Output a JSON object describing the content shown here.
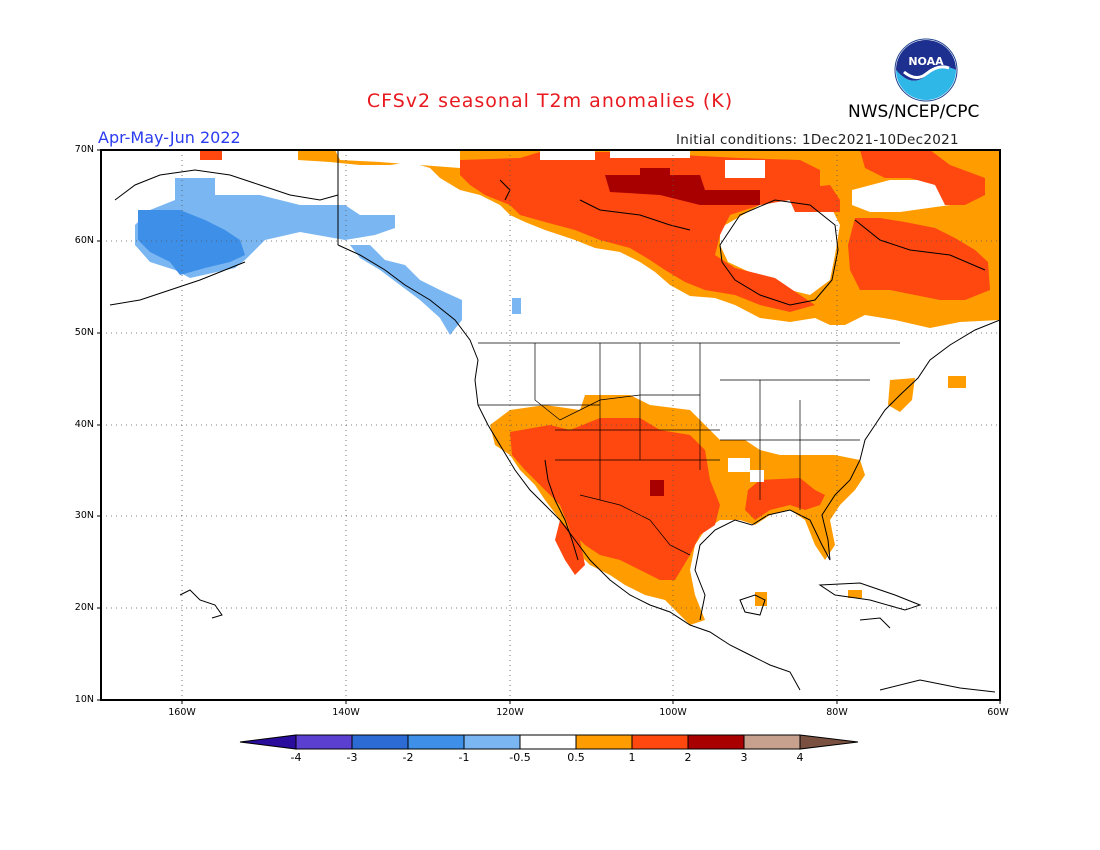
{
  "map": {
    "title": "CFSv2 seasonal T2m anomalies (K)",
    "period": "Apr-May-Jun 2022",
    "initial_conditions": "Initial conditions: 1Dec2021-10Dec2021",
    "agency": "NWS/NCEP/CPC",
    "logo_text": "NOAA",
    "lat_ticks": [
      "70N",
      "60N",
      "50N",
      "40N",
      "30N",
      "20N",
      "10N"
    ],
    "lon_ticks": [
      "160W",
      "140W",
      "120W",
      "100W",
      "80W",
      "60W"
    ],
    "extent": {
      "lon": [
        -170,
        -60
      ],
      "lat": [
        10,
        70
      ]
    },
    "grid": "dotted every 10 degrees",
    "colors": {
      "le_-4": "#2a0d9c",
      "-4_-3": "#5a3fd0",
      "-3_-2": "#2c6ad4",
      "-2_-1": "#3d8fe8",
      "-1_-0.5": "#7ab6f2",
      "-0.5_0.5": "#ffffff",
      "0.5_1": "#ff9d00",
      "1_2": "#ff4710",
      "2_3": "#a80000",
      "3_4": "#c8a08e",
      "ge_4": "#7a5040"
    }
  },
  "colorbar": {
    "ticks": [
      "-4",
      "-3",
      "-2",
      "-1",
      "-0.5",
      "0.5",
      "1",
      "2",
      "3",
      "4"
    ]
  }
}
